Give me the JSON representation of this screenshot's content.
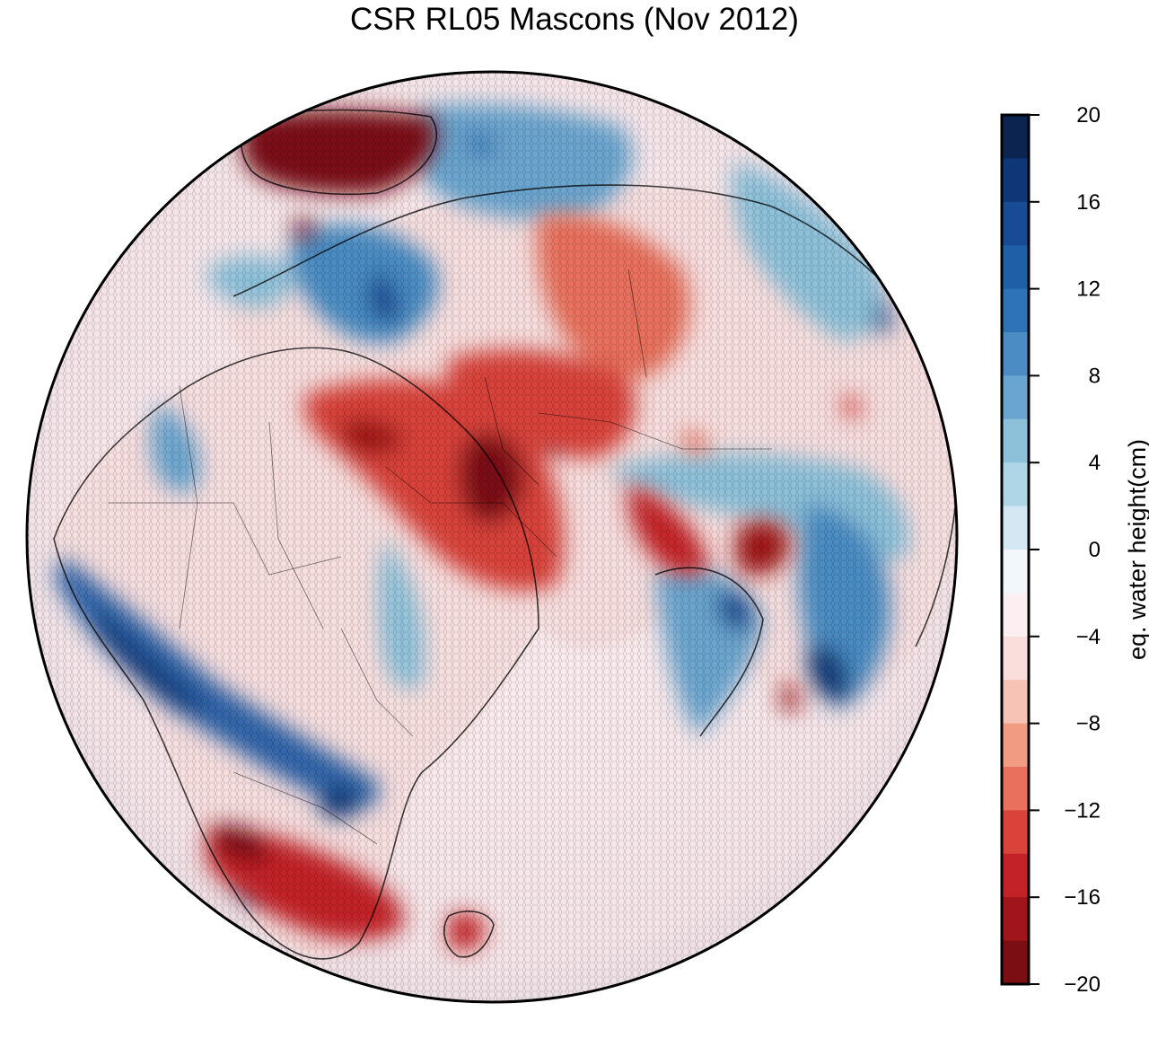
{
  "title": "CSR RL05 Mascons (Nov 2012)",
  "colorbar": {
    "label": "eq. water height(cm)",
    "min": -20,
    "max": 20,
    "step": 2,
    "tick_values": [
      20,
      16,
      12,
      8,
      4,
      0,
      -4,
      -8,
      -12,
      -16,
      -20
    ],
    "tick_labels": [
      "20",
      "16",
      "12",
      "8",
      "4",
      "0",
      "−4",
      "−8",
      "−12",
      "−16",
      "−20"
    ],
    "colors_top_to_bottom": [
      "#0b2450",
      "#0f3777",
      "#174b93",
      "#1f5fa8",
      "#2d73b6",
      "#4a8cc3",
      "#6aa5cf",
      "#8dc1da",
      "#afd6e6",
      "#d3e8f2",
      "#f1f7fb",
      "#fbeff2",
      "#f9dede",
      "#f6c3b4",
      "#f09b82",
      "#e8705c",
      "#d9433a",
      "#c32228",
      "#9f1519",
      "#7a0e12"
    ]
  }
}
